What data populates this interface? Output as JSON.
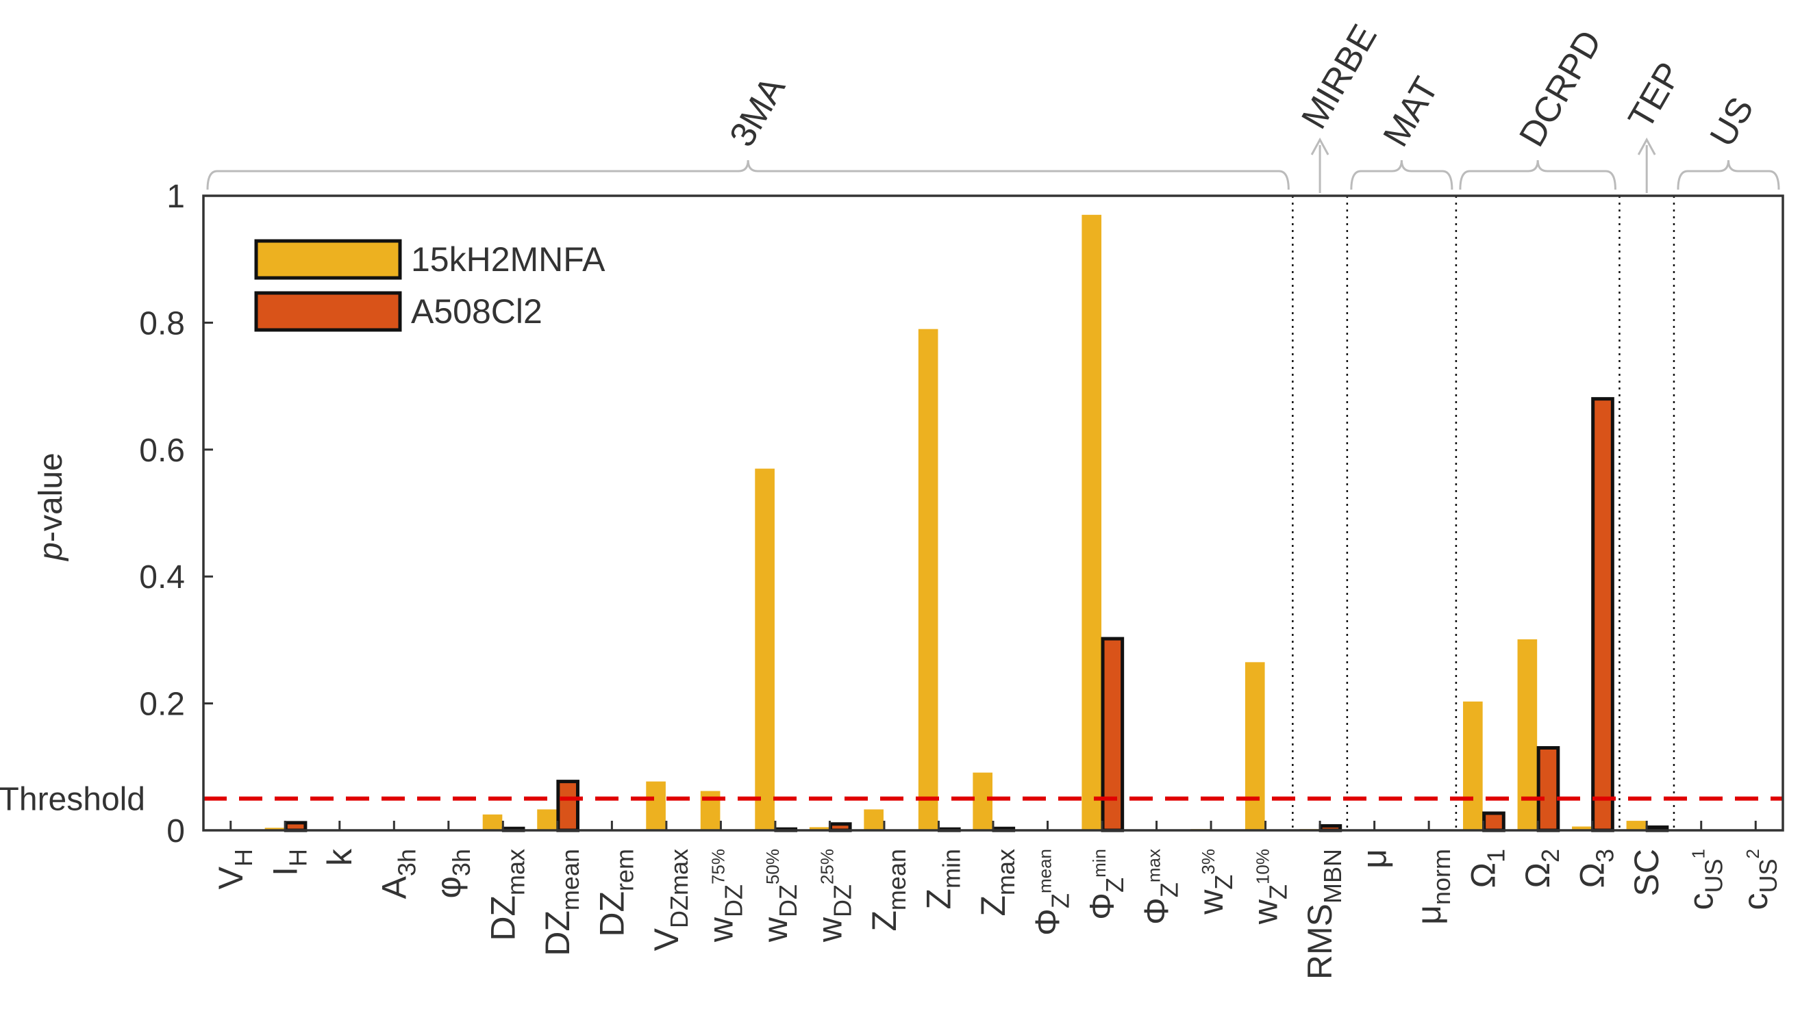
{
  "chart_data": {
    "type": "bar",
    "ylabel": "p-value",
    "ylim": [
      0,
      1
    ],
    "yticks": [
      "0",
      "0.2",
      "0.4",
      "0.6",
      "0.8",
      "1"
    ],
    "threshold": {
      "label": "Threshold",
      "value": 0.05
    },
    "categories": [
      "V_H",
      "I_H",
      "k",
      "A_3h",
      "φ_3h",
      "DZ_max",
      "DZ_mean",
      "DZ_rem",
      "V_DZmax",
      "w_DZ75%",
      "w_DZ50%",
      "w_DZ25%",
      "Z_mean",
      "Z_min",
      "Z_max",
      "ΦZ_mean",
      "ΦZ_min",
      "ΦZ_max",
      "w_Z3%",
      "w_Z10%",
      "RMS_MBN",
      "μ",
      "μ_norm",
      "Ω_1",
      "Ω_2",
      "Ω_3",
      "SC",
      "c_US1",
      "c_US2"
    ],
    "category_labels": [
      {
        "main": "V",
        "sub": "H"
      },
      {
        "main": "I",
        "sub": "H"
      },
      {
        "main": "k",
        "sub": ""
      },
      {
        "main": "A",
        "sub": "3h"
      },
      {
        "main": "φ",
        "sub": "3h"
      },
      {
        "main": "DZ",
        "sub": "max"
      },
      {
        "main": "DZ",
        "sub": "mean"
      },
      {
        "main": "DZ",
        "sub": "rem"
      },
      {
        "main": "V",
        "sub": "DZmax"
      },
      {
        "main": "w",
        "sub": "DZ",
        "sub2": "75%"
      },
      {
        "main": "w",
        "sub": "DZ",
        "sub2": "50%"
      },
      {
        "main": "w",
        "sub": "DZ",
        "sub2": "25%"
      },
      {
        "main": "Z",
        "sub": "mean"
      },
      {
        "main": "Z",
        "sub": "min"
      },
      {
        "main": "Z",
        "sub": "max"
      },
      {
        "main": "Φ",
        "sub": "Z",
        "sub2": "mean"
      },
      {
        "main": "Φ",
        "sub": "Z",
        "sub2": "min"
      },
      {
        "main": "Φ",
        "sub": "Z",
        "sub2": "max"
      },
      {
        "main": "w",
        "sub": "Z",
        "sub2": "3%"
      },
      {
        "main": "w",
        "sub": "Z",
        "sub2": "10%"
      },
      {
        "main": "RMS",
        "sub": "MBN"
      },
      {
        "main": "μ",
        "sub": ""
      },
      {
        "main": "μ",
        "sub": "norm"
      },
      {
        "main": "Ω",
        "sub": "1"
      },
      {
        "main": "Ω",
        "sub": "2"
      },
      {
        "main": "Ω",
        "sub": "3"
      },
      {
        "main": "SC",
        "sub": ""
      },
      {
        "main": "c",
        "sub": "US",
        "sub2": "1"
      },
      {
        "main": "c",
        "sub": "US",
        "sub2": "2"
      }
    ],
    "series": [
      {
        "name": "15kH2MNFA",
        "color": "#EDB120",
        "outlined": false,
        "values": [
          0,
          0.004,
          0,
          0,
          0,
          0.025,
          0.033,
          0,
          0.077,
          0.062,
          0.57,
          0.005,
          0.033,
          0.79,
          0.091,
          0,
          0.97,
          0,
          0.002,
          0.265,
          0.002,
          0,
          0,
          0.203,
          0.301,
          0.006,
          0.015,
          0,
          0
        ]
      },
      {
        "name": "A508Cl2",
        "color": "#D95319",
        "outlined": true,
        "values": [
          0,
          0.012,
          0,
          0,
          0,
          0.003,
          0.077,
          0,
          0,
          0,
          0.002,
          0.01,
          0,
          0.002,
          0.003,
          0,
          0.302,
          0,
          0,
          0,
          0.007,
          0,
          0,
          0.027,
          0.13,
          0.68,
          0.005,
          0,
          0
        ]
      }
    ],
    "method_groups": [
      {
        "name": "3MA",
        "marker": "brace",
        "from": 0,
        "to": 19
      },
      {
        "name": "MIRBE",
        "marker": "arrow",
        "from": 20,
        "to": 20
      },
      {
        "name": "MAT",
        "marker": "brace",
        "from": 21,
        "to": 22
      },
      {
        "name": "DCRPD",
        "marker": "brace",
        "from": 23,
        "to": 25
      },
      {
        "name": "TEP",
        "marker": "arrow",
        "from": 26,
        "to": 26
      },
      {
        "name": "US",
        "marker": "brace",
        "from": 27,
        "to": 28
      }
    ],
    "separators_after": [
      19,
      20,
      22,
      25,
      26
    ],
    "legend_position": "top-left"
  }
}
